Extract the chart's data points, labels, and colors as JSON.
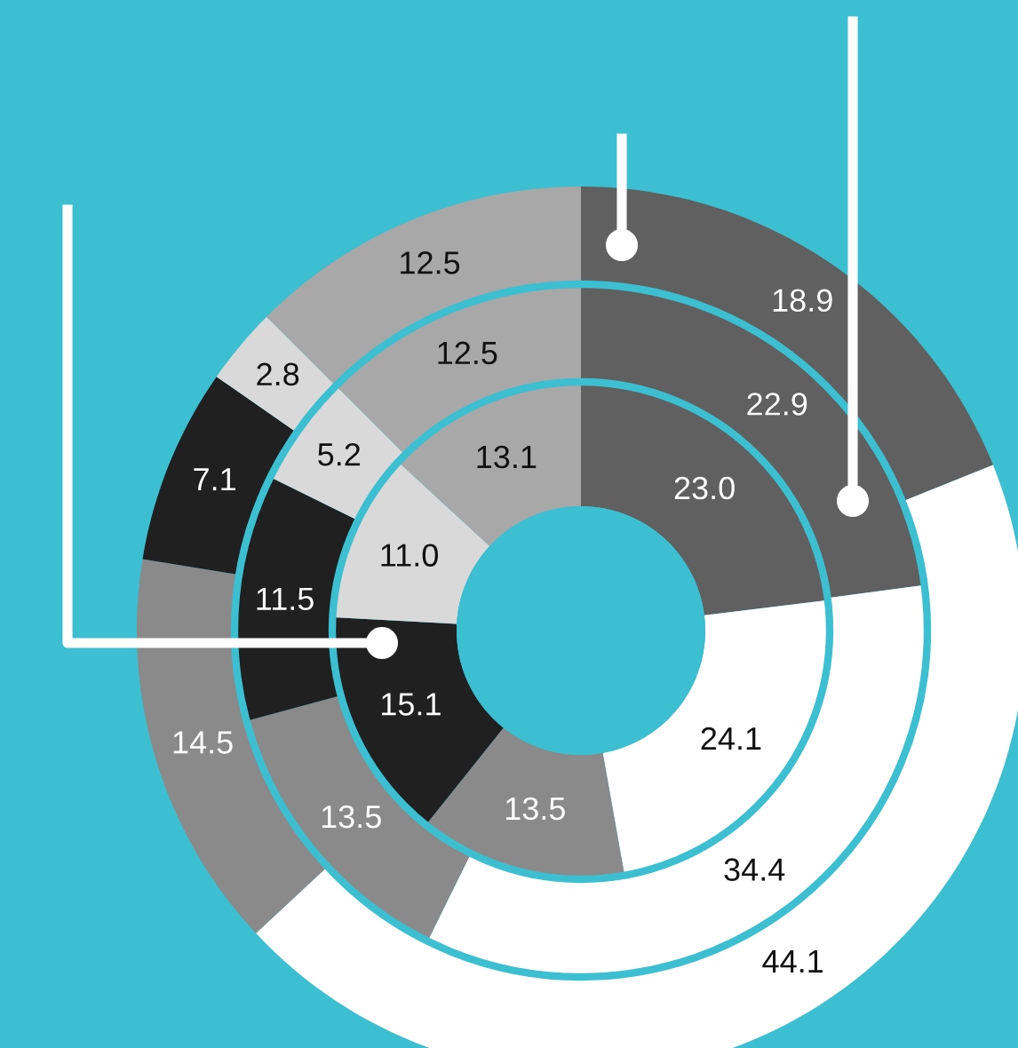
{
  "chart_data": {
    "type": "donut",
    "categories": [
      null,
      null,
      null,
      null,
      null,
      null
    ],
    "colors": [
      "#606060",
      "#ffffff",
      "#8a8a8a",
      "#202020",
      "#d9d9d9",
      "#a8a8a8"
    ],
    "series": [
      {
        "values": [
          18.9,
          44.1,
          14.5,
          7.1,
          2.8,
          12.5
        ],
        "value_labels": [
          "18.9",
          "44.1",
          "14.5",
          "7.1",
          "2.8",
          "12.5"
        ]
      },
      {
        "values": [
          22.9,
          34.4,
          13.5,
          11.5,
          5.2,
          12.5
        ],
        "value_labels": [
          "22.9",
          "34.4",
          "13.5",
          "11.5",
          "5.2",
          "12.5"
        ]
      },
      {
        "values": [
          23.0,
          24.1,
          13.5,
          15.1,
          11.0,
          13.1
        ],
        "value_labels": [
          "23.0",
          "24.1",
          "13.5",
          "15.1",
          "11.0",
          "13.1"
        ]
      }
    ]
  }
}
